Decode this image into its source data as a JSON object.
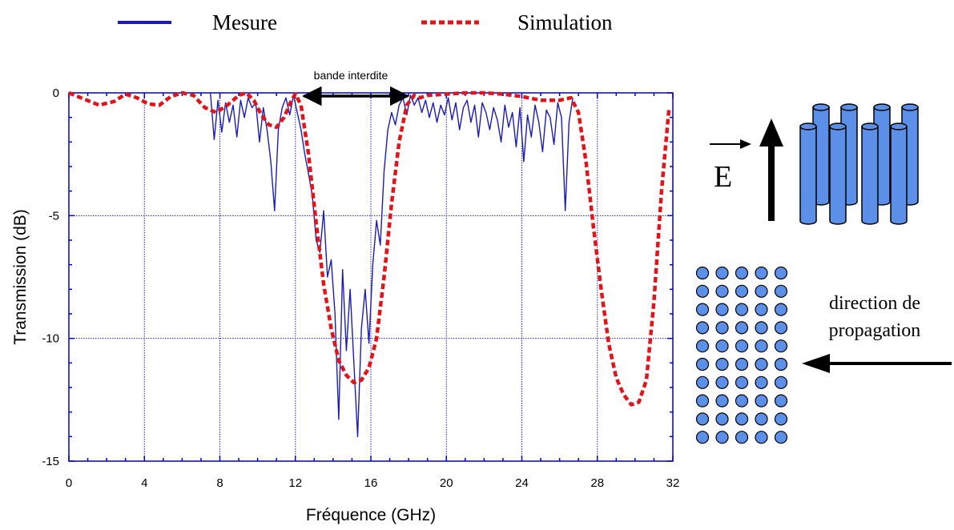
{
  "legend": {
    "measure_label": "Mesure",
    "simulation_label": "Simulation",
    "placement": "top"
  },
  "annotations": {
    "band_label": "bande interdite",
    "field_label": "E",
    "propagation_line1": "direction de",
    "propagation_line2": "propagation"
  },
  "colors": {
    "measure": "#1c1cb4",
    "simulation": "#e0141a",
    "grid": "#2626c8",
    "axis": "#0000c8",
    "rods": "#5b8fe8",
    "black": "#000000"
  },
  "chart_data": {
    "type": "line",
    "xlabel": "Fréquence (GHz)",
    "ylabel": "Transmission (dB)",
    "xlim": [
      0,
      32
    ],
    "ylim": [
      -15,
      0
    ],
    "xticks": [
      "0",
      "4",
      "8",
      "12",
      "16",
      "20",
      "24",
      "28",
      "32"
    ],
    "yticks": [
      "0",
      "-5",
      "-10",
      "-15"
    ],
    "grid": true,
    "band_gap_ghz": [
      12.2,
      18.2
    ],
    "series": [
      {
        "name": "Mesure",
        "style": "solid",
        "x": [
          7.5,
          7.7,
          7.9,
          8.1,
          8.3,
          8.5,
          8.7,
          8.9,
          9.1,
          9.3,
          9.5,
          9.7,
          9.9,
          10.1,
          10.3,
          10.5,
          10.7,
          10.9,
          11.1,
          11.3,
          11.5,
          11.7,
          11.9,
          12.1,
          12.3,
          12.5,
          12.7,
          12.9,
          13.1,
          13.3,
          13.5,
          13.7,
          13.9,
          14.1,
          14.3,
          14.5,
          14.7,
          14.9,
          15.1,
          15.3,
          15.5,
          15.7,
          15.9,
          16.1,
          16.3,
          16.5,
          16.7,
          16.9,
          17.1,
          17.3,
          17.5,
          17.7,
          17.9,
          18.1,
          18.3,
          18.5,
          18.7,
          18.9,
          19.1,
          19.3,
          19.5,
          19.7,
          19.9,
          20.1,
          20.3,
          20.5,
          20.7,
          20.9,
          21.1,
          21.3,
          21.5,
          21.7,
          21.9,
          22.1,
          22.3,
          22.5,
          22.7,
          22.9,
          23.1,
          23.3,
          23.5,
          23.7,
          23.9,
          24.1,
          24.3,
          24.5,
          24.7,
          24.9,
          25.1,
          25.3,
          25.5,
          25.7,
          25.9,
          26.1,
          26.3,
          26.5,
          26.7
        ],
        "y": [
          0,
          -1.9,
          -0.3,
          -1.6,
          -0.4,
          -1.2,
          -0.5,
          -1.8,
          -0.3,
          -1.0,
          -0.2,
          -0.6,
          -0.4,
          -2.0,
          -0.6,
          -1.5,
          -2.8,
          -4.8,
          -1.5,
          -0.6,
          -0.2,
          -0.9,
          -0.1,
          -0.8,
          -1.5,
          -2.5,
          -3.3,
          -4.2,
          -6.0,
          -6.5,
          -4.8,
          -7.5,
          -6.8,
          -9.0,
          -13.3,
          -7.2,
          -10.5,
          -8.0,
          -11.0,
          -14.0,
          -9.6,
          -8.0,
          -10.2,
          -7.0,
          -5.2,
          -6.2,
          -3.2,
          -1.5,
          -0.8,
          -1.3,
          -0.5,
          -0.2,
          -0.9,
          -0.1,
          -0.5,
          -0.2,
          -0.8,
          -0.3,
          -1.0,
          -0.4,
          -1.2,
          -0.5,
          -0.9,
          -0.2,
          -1.1,
          -0.4,
          -1.5,
          -0.6,
          -0.3,
          -1.2,
          -0.5,
          -1.8,
          -0.4,
          -0.8,
          -1.5,
          -0.6,
          -1.1,
          -2.0,
          -0.5,
          -1.4,
          -0.8,
          -2.2,
          -0.6,
          -2.8,
          -0.9,
          -1.8,
          -0.5,
          -1.2,
          -2.4,
          -0.7,
          -1.0,
          -2.1,
          -0.4,
          -1.0,
          -4.8,
          -1.2,
          -0.2
        ]
      },
      {
        "name": "Simulation",
        "style": "dashed",
        "x": [
          0,
          0.8,
          1.6,
          2.4,
          3.0,
          3.6,
          4.2,
          4.8,
          5.4,
          6.0,
          6.6,
          7.2,
          7.8,
          8.4,
          9.0,
          9.4,
          9.8,
          10.2,
          10.6,
          11.0,
          11.4,
          11.8,
          12.0,
          12.3,
          12.7,
          13.1,
          13.5,
          13.9,
          14.3,
          14.7,
          15.1,
          15.5,
          15.9,
          16.3,
          16.7,
          17.1,
          17.5,
          17.9,
          18.3,
          18.6,
          19.0,
          20.0,
          21.0,
          22.0,
          23.0,
          24.0,
          25.0,
          26.0,
          26.6,
          27.0,
          27.4,
          27.8,
          28.2,
          28.6,
          29.0,
          29.4,
          29.8,
          30.2,
          30.6,
          31.0,
          31.4,
          31.8
        ],
        "y": [
          0,
          -0.25,
          -0.5,
          -0.35,
          -0.05,
          -0.2,
          -0.45,
          -0.5,
          -0.15,
          0,
          -0.1,
          -0.6,
          -0.8,
          -0.5,
          -0.1,
          0,
          -0.3,
          -0.9,
          -1.3,
          -1.4,
          -1.0,
          -0.3,
          -0.05,
          -0.5,
          -2.5,
          -5.3,
          -7.8,
          -9.6,
          -10.9,
          -11.5,
          -11.8,
          -11.7,
          -11.2,
          -10.0,
          -7.5,
          -4.5,
          -2.0,
          -0.5,
          -0.1,
          -0.2,
          -0.1,
          -0.05,
          0,
          0,
          -0.05,
          -0.15,
          -0.3,
          -0.3,
          -0.2,
          -0.8,
          -2.8,
          -5.5,
          -8.0,
          -10.2,
          -11.6,
          -12.3,
          -12.7,
          -12.6,
          -11.7,
          -8.5,
          -4.0,
          -0.6
        ]
      }
    ]
  }
}
